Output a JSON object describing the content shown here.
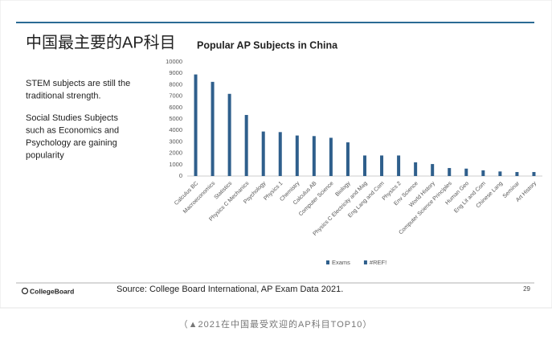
{
  "slide": {
    "title": "中国最主要的AP科目",
    "bullets": [
      [
        "STEM subjects are still the",
        "traditional strength."
      ],
      [
        "Social Studies Subjects",
        "such as Economics and",
        "Psychology are gaining",
        "popularity"
      ]
    ],
    "logo": "CollegeBoard",
    "source": "Source: College Board International, AP Exam Data 2021.",
    "page_number": "29"
  },
  "caption": "（▲2021在中国最受欢迎的AP科目TOP10）",
  "chart_data": {
    "type": "bar",
    "title": "Popular AP Subjects in China",
    "categories": [
      "Calculus BC",
      "Macroeconomics",
      "Statistics",
      "Physics C Mechanics",
      "Psychology",
      "Physics 1",
      "Chemistry",
      "Calculus AB",
      "Computer Science",
      "Biology",
      "Physics C Electricity and Mag",
      "Eng Lang and Com",
      "Physics 2",
      "Env Science",
      "World History",
      "Computer Science Principles",
      "Human Geo",
      "Eng Lit and Com",
      "Chinese Lang",
      "Seminar",
      "Art History"
    ],
    "series": [
      {
        "name": "Exams",
        "color": "#2f5f8c",
        "values": [
          8900,
          8250,
          7200,
          5350,
          3900,
          3850,
          3550,
          3500,
          3350,
          2950,
          1800,
          1800,
          1800,
          1200,
          1050,
          700,
          650,
          500,
          400,
          350,
          350
        ]
      },
      {
        "name": "#REF!",
        "color": "#2f5f8c",
        "values": [
          null,
          null,
          null,
          null,
          null,
          null,
          null,
          null,
          null,
          null,
          null,
          null,
          null,
          null,
          null,
          null,
          null,
          null,
          null,
          null,
          null
        ]
      }
    ],
    "ylim": [
      0,
      10000
    ],
    "yticks": [
      0,
      1000,
      2000,
      3000,
      4000,
      5000,
      6000,
      7000,
      8000,
      9000,
      10000
    ],
    "grid": false,
    "legend": "bottom"
  }
}
